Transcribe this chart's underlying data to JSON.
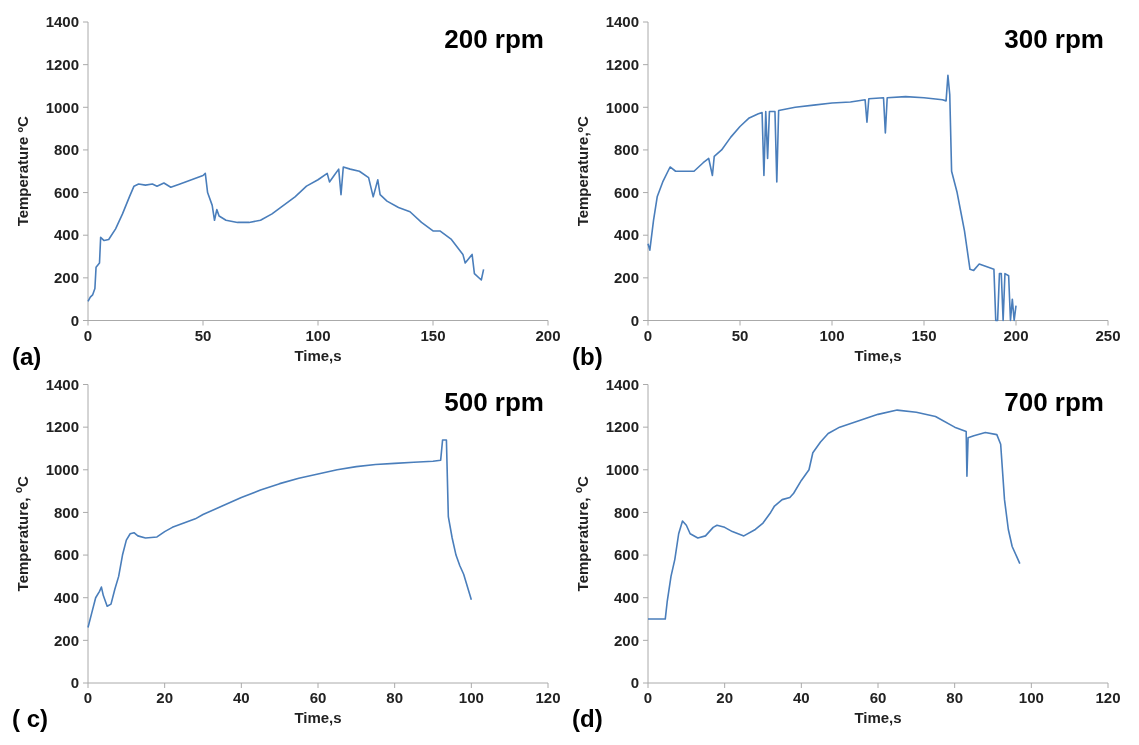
{
  "chart_data": [
    {
      "type": "line",
      "xlabel": "Time,s",
      "ylabel": "Temperature ºC",
      "annotations": [
        "200 rpm",
        "(a)"
      ],
      "xlim": [
        0,
        200
      ],
      "xticks": [
        0,
        50,
        100,
        150,
        200
      ],
      "ylim": [
        0,
        1400
      ],
      "yticks": [
        0,
        200,
        400,
        600,
        800,
        1000,
        1200,
        1400
      ],
      "series": [
        {
          "color": "#4a7ebb",
          "x": [
            0,
            1,
            2,
            3,
            3.5,
            5,
            5.5,
            7,
            9,
            12,
            15,
            18,
            20,
            22,
            25,
            28,
            30,
            33,
            36,
            40,
            45,
            50,
            51,
            52,
            54,
            55,
            56,
            57,
            60,
            65,
            70,
            75,
            80,
            85,
            90,
            95,
            100,
            104,
            105,
            107,
            109,
            110,
            111,
            114,
            118,
            122,
            124,
            126,
            127,
            130,
            135,
            140,
            145,
            150,
            153,
            158,
            163,
            164,
            167,
            168,
            171,
            172
          ],
          "values": [
            90,
            110,
            120,
            150,
            250,
            270,
            390,
            375,
            380,
            430,
            500,
            580,
            630,
            640,
            635,
            640,
            630,
            645,
            625,
            640,
            660,
            680,
            690,
            600,
            540,
            470,
            520,
            490,
            470,
            460,
            460,
            470,
            500,
            540,
            580,
            630,
            660,
            690,
            650,
            680,
            710,
            590,
            720,
            710,
            700,
            670,
            580,
            660,
            590,
            560,
            530,
            510,
            460,
            420,
            420,
            380,
            310,
            270,
            310,
            220,
            190,
            240
          ]
        }
      ]
    },
    {
      "type": "line",
      "xlabel": "Time,s",
      "ylabel": "Temperature,ºC",
      "annotations": [
        "300 rpm",
        "(b)"
      ],
      "xlim": [
        0,
        250
      ],
      "xticks": [
        0,
        50,
        100,
        150,
        200,
        250
      ],
      "ylim": [
        0,
        1400
      ],
      "yticks": [
        0,
        200,
        400,
        600,
        800,
        1000,
        1200,
        1400
      ],
      "series": [
        {
          "color": "#4a7ebb",
          "x": [
            0,
            1,
            3,
            5,
            8,
            12,
            15,
            20,
            25,
            30,
            33,
            35,
            36,
            40,
            45,
            50,
            55,
            60,
            62,
            63,
            64,
            65,
            66,
            69,
            70,
            71,
            80,
            90,
            100,
            110,
            118,
            119,
            120,
            128,
            129,
            130,
            140,
            150,
            160,
            162,
            163,
            164,
            165,
            168,
            170,
            172,
            174,
            175,
            177,
            180,
            188,
            189,
            190,
            191,
            192,
            193,
            194,
            196,
            197,
            198,
            199,
            200
          ],
          "values": [
            360,
            330,
            470,
            580,
            650,
            720,
            700,
            700,
            700,
            740,
            760,
            680,
            770,
            800,
            860,
            910,
            950,
            970,
            975,
            680,
            980,
            760,
            980,
            980,
            650,
            985,
            1000,
            1010,
            1020,
            1025,
            1035,
            930,
            1040,
            1045,
            880,
            1045,
            1050,
            1045,
            1035,
            1030,
            1150,
            1060,
            700,
            600,
            510,
            420,
            300,
            240,
            235,
            265,
            240,
            0,
            0,
            220,
            220,
            0,
            220,
            210,
            0,
            100,
            0,
            70
          ]
        }
      ]
    },
    {
      "type": "line",
      "xlabel": "Time,s",
      "ylabel": "Temperature, $^{o}$C",
      "annotations": [
        "500 rpm",
        "( c)"
      ],
      "xlim": [
        0,
        120
      ],
      "xticks": [
        0,
        20,
        40,
        60,
        80,
        100,
        120
      ],
      "ylim": [
        0,
        1400
      ],
      "yticks": [
        0,
        200,
        400,
        600,
        800,
        1000,
        1200,
        1400
      ],
      "series": [
        {
          "color": "#4a7ebb",
          "x": [
            0,
            1,
            2,
            3,
            3.5,
            4,
            5,
            6,
            7,
            8,
            9,
            10,
            11,
            12,
            13,
            15,
            18,
            20,
            22,
            25,
            28,
            30,
            35,
            40,
            45,
            50,
            55,
            60,
            65,
            70,
            75,
            80,
            85,
            90,
            92,
            92.5,
            93.5,
            94,
            95,
            96,
            97,
            98,
            100
          ],
          "values": [
            260,
            330,
            400,
            430,
            450,
            410,
            360,
            370,
            440,
            500,
            600,
            670,
            700,
            705,
            690,
            680,
            685,
            710,
            730,
            750,
            770,
            790,
            830,
            870,
            905,
            935,
            960,
            980,
            1000,
            1015,
            1025,
            1030,
            1035,
            1040,
            1045,
            1140,
            1140,
            780,
            680,
            600,
            550,
            510,
            390
          ]
        }
      ]
    },
    {
      "type": "line",
      "xlabel": "Time,s",
      "ylabel": "Temperature, $^{o}$C",
      "annotations": [
        "700 rpm",
        "(d)"
      ],
      "xlim": [
        0,
        120
      ],
      "xticks": [
        0,
        20,
        40,
        60,
        80,
        100,
        120
      ],
      "ylim": [
        0,
        1400
      ],
      "yticks": [
        0,
        200,
        400,
        600,
        800,
        1000,
        1200,
        1400
      ],
      "series": [
        {
          "color": "#4a7ebb",
          "x": [
            0,
            4.5,
            5,
            6,
            7,
            8,
            9,
            10,
            11,
            13,
            15,
            17,
            18,
            20,
            22,
            25,
            28,
            30,
            32,
            33,
            35,
            37,
            38,
            40,
            42,
            43,
            45,
            47,
            50,
            55,
            60,
            65,
            70,
            75,
            80,
            83,
            83.2,
            83.5,
            85,
            88,
            91,
            92,
            93,
            94,
            95,
            97
          ],
          "values": [
            300,
            300,
            380,
            500,
            580,
            700,
            760,
            740,
            700,
            680,
            690,
            730,
            740,
            730,
            710,
            690,
            720,
            750,
            800,
            830,
            860,
            870,
            890,
            950,
            1000,
            1080,
            1130,
            1170,
            1200,
            1230,
            1260,
            1280,
            1270,
            1250,
            1200,
            1180,
            970,
            1150,
            1160,
            1175,
            1165,
            1120,
            860,
            720,
            640,
            560
          ]
        }
      ]
    }
  ]
}
